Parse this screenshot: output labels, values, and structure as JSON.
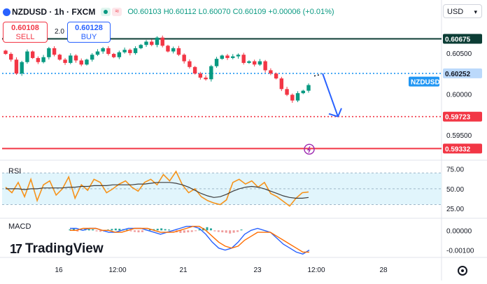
{
  "header": {
    "symbol": "NZDUSD",
    "interval": "1h",
    "exchange": "FXCM",
    "title": "NZDUSD · 1h · FXCM",
    "open": "O0.60103",
    "high": "H0.60112",
    "low": "L0.60070",
    "close": "C0.60109",
    "change": "+0.00006 (+0.01%)"
  },
  "trade": {
    "sell_price": "0.60108",
    "sell_label": "SELL",
    "buy_price": "0.60128",
    "buy_label": "BUY",
    "spread": "2.0"
  },
  "currency_select": "USD",
  "brand": "TradingView",
  "colors": {
    "up": "#089981",
    "down": "#f23645",
    "resistance": "#0c3d35",
    "support_dotted": "#f23645",
    "support_solid": "#f23645",
    "pivot_dotted": "#2196f3",
    "arrow": "#2962ff",
    "rsi_line": "#f7931a",
    "rsi_ma": "#3d3d3d",
    "macd_line": "#2962ff",
    "signal_line": "#ff6d00"
  },
  "chart_data": [
    {
      "type": "candlestick",
      "title": "NZDUSD · 1h · FXCM",
      "x_tick_labels": [
        "16",
        "12:00",
        "21",
        "12:00",
        "23",
        "12:00",
        "28"
      ],
      "y_tick_labels": [
        "0.60500",
        "0.60000",
        "0.59500"
      ],
      "ylim": [
        0.5925,
        0.6085
      ],
      "grid": false,
      "series": [
        {
          "name": "close",
          "values": [
            0.6049,
            0.6042,
            0.6025,
            0.6039,
            0.6052,
            0.6044,
            0.6039,
            0.6045,
            0.6056,
            0.6048,
            0.6042,
            0.6038,
            0.6047,
            0.6041,
            0.6036,
            0.6042,
            0.6048,
            0.6052,
            0.6056,
            0.6049,
            0.6045,
            0.6051,
            0.6054,
            0.605,
            0.6056,
            0.606,
            0.6064,
            0.606,
            0.6069,
            0.6059,
            0.6052,
            0.6056,
            0.6048,
            0.604,
            0.6033,
            0.6025,
            0.602,
            0.6018,
            0.6034,
            0.6043,
            0.6047,
            0.6044,
            0.6046,
            0.6048,
            0.6038,
            0.604,
            0.6036,
            0.604,
            0.6029,
            0.6025,
            0.6019,
            0.6006,
            0.5999,
            0.5992,
            0.6001,
            0.6004,
            0.60109
          ]
        }
      ],
      "annotations": [
        {
          "label": "0.60675",
          "y": 0.60675,
          "style": "solid",
          "color": "#0c3d35"
        },
        {
          "label": "0.60252",
          "y": 0.60252,
          "style": "dotted",
          "color": "#2196f3"
        },
        {
          "label": "0.59723",
          "y": 0.59723,
          "style": "dotted",
          "color": "#f23645"
        },
        {
          "label": "0.59332",
          "y": 0.59332,
          "style": "solid",
          "color": "#f23645"
        }
      ],
      "symbol_tag": "NZDUSD",
      "last_price": 0.60109
    },
    {
      "type": "line",
      "name": "RSI",
      "title": "RSI",
      "ylim": [
        18,
        80
      ],
      "levels": [
        30,
        70
      ],
      "y_tick_labels": [
        "75.00",
        "50.00",
        "25.00"
      ],
      "series": [
        {
          "name": "RSI",
          "values": [
            52,
            45,
            58,
            40,
            62,
            35,
            55,
            60,
            42,
            50,
            65,
            38,
            55,
            48,
            62,
            58,
            45,
            50,
            56,
            60,
            52,
            47,
            58,
            62,
            55,
            68,
            60,
            72,
            55,
            45,
            50,
            40,
            35,
            32,
            30,
            36,
            58,
            62,
            56,
            60,
            52,
            58,
            44,
            40,
            34,
            28,
            38,
            45,
            46
          ]
        },
        {
          "name": "RSI MA",
          "values": [
            50,
            50,
            50,
            49,
            50,
            50,
            51,
            51,
            51,
            51,
            52,
            52,
            53,
            53,
            54,
            54,
            54,
            55,
            55,
            55,
            55,
            56,
            56,
            57,
            58,
            58,
            58,
            57,
            55,
            52,
            48,
            44,
            41,
            39,
            40,
            43,
            47,
            50,
            52,
            53,
            52,
            50,
            47,
            44,
            41,
            39,
            38,
            38,
            39
          ]
        }
      ]
    },
    {
      "type": "bar",
      "name": "MACD",
      "title": "MACD",
      "y_tick_labels": [
        "0.00000",
        "-0.00100"
      ],
      "ylim": [
        -0.0013,
        0.0004
      ],
      "series": [
        {
          "name": "Histogram",
          "values": [
            5e-05,
            8e-05,
            -6e-05,
            4e-05,
            7e-05,
            6e-05,
            5e-05,
            -5e-05,
            -7e-05,
            -6e-05,
            4e-05,
            7e-05,
            9e-05,
            8e-05,
            6e-05,
            4e-05,
            -5e-05,
            -8e-05,
            -0.0001,
            -9e-05,
            4e-05,
            5e-05,
            6e-05,
            8e-05,
            0.0001,
            6e-05,
            4e-05,
            -5e-05,
            -0.0001,
            -0.00013,
            -0.00012,
            -0.0001,
            -8e-05,
            -4e-05,
            6e-05,
            0.00012,
            0.00016,
            0.0001,
            -5e-05,
            -8e-05,
            -0.0001,
            -0.00012,
            -0.00016,
            -0.00012,
            -8e-05,
            4e-05
          ]
        },
        {
          "name": "MACD",
          "values": [
            0.0001,
            0.0001,
            0.0,
            0.0001,
            0.0001,
            0.0,
            -0.0001,
            -0.0001,
            0.0,
            0.0001,
            0.0001,
            0.0001,
            0.0,
            -0.0001,
            -0.0002,
            -0.0001,
            0.0,
            0.0001,
            0.0002,
            0.0002,
            0.0001,
            -0.0002,
            -0.0006,
            -0.0009,
            -0.001,
            -0.0009,
            -0.0006,
            -0.0002,
            0.0,
            0.0001,
            0.0,
            -0.0001,
            -0.0004,
            -0.0007,
            -0.0009,
            -0.0011,
            -0.0012,
            -0.001
          ]
        },
        {
          "name": "Signal",
          "values": [
            0.0,
            0.0,
            0.0001,
            0.0001,
            0.0001,
            0.0,
            0.0,
            -0.0001,
            -0.0001,
            0.0,
            0.0001,
            0.0001,
            0.0001,
            0.0,
            -0.0001,
            -0.0001,
            -0.0001,
            0.0,
            0.0001,
            0.0002,
            0.0002,
            0.0,
            -0.0003,
            -0.0006,
            -0.0008,
            -0.0009,
            -0.0008,
            -0.0005,
            -0.0003,
            -0.0001,
            -0.0001,
            -0.0001,
            -0.0003,
            -0.0005,
            -0.0007,
            -0.0009,
            -0.0011,
            -0.0011
          ]
        }
      ]
    }
  ]
}
